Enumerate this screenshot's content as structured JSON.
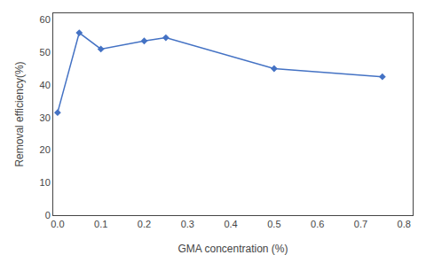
{
  "chart_data": {
    "type": "line",
    "xlabel": "GMA concentration (%)",
    "ylabel": "Removal efficiency(%)",
    "x": [
      0.0,
      0.05,
      0.1,
      0.2,
      0.25,
      0.5,
      0.75
    ],
    "values": [
      31.5,
      56.0,
      51.0,
      53.5,
      54.5,
      45.0,
      42.5
    ],
    "color": "#4472C4",
    "marker": "diamond",
    "xlim": [
      -0.01,
      0.82
    ],
    "ylim": [
      0,
      62
    ],
    "xticks": [
      {
        "value": 0,
        "label": "0.0"
      },
      0.1,
      0.2,
      0.3,
      0.4,
      0.5,
      0.6,
      0.7,
      0.8
    ],
    "yticks": [
      0,
      10,
      20,
      30,
      40,
      50,
      60
    ],
    "grid": false
  }
}
